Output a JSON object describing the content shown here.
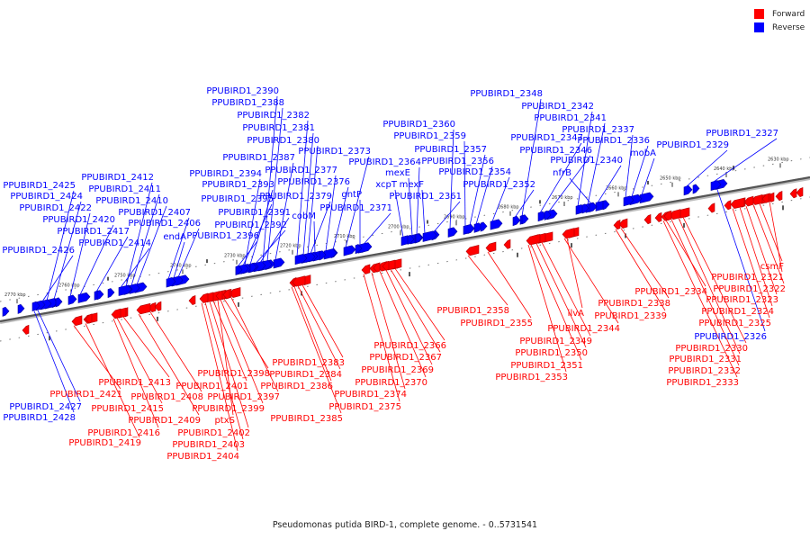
{
  "legend": {
    "forward_label": "Forward",
    "reverse_label": "Reverse",
    "forward_color": "#ff0000",
    "reverse_color": "#0000ff"
  },
  "caption": {
    "genome": "Pseudomonas putida BIRD-1, complete genome.",
    "range": " - 0..5731541"
  },
  "scale_labels": [
    "2630 kbp",
    "2640 kbp",
    "2650 kbp",
    "2660 kbp",
    "2670 kbp",
    "2680 kbp",
    "2690 kbp",
    "2700 kbp",
    "2710 kbp",
    "2720 kbp",
    "2730 kbp",
    "2740 kbp",
    "2750 kbp",
    "2760 kbp",
    "2770 kbp"
  ],
  "genes": [
    {
      "label": "PPUBIRD1_2321",
      "strand": "forward"
    },
    {
      "label": "csmF",
      "strand": "forward"
    },
    {
      "label": "PPUBIRD1_2322",
      "strand": "forward"
    },
    {
      "label": "PPUBIRD1_2323",
      "strand": "forward"
    },
    {
      "label": "PPUBIRD1_2324",
      "strand": "forward"
    },
    {
      "label": "PPUBIRD1_2325",
      "strand": "forward"
    },
    {
      "label": "PPUBIRD1_2326",
      "strand": "reverse"
    },
    {
      "label": "PPUBIRD1_2327",
      "strand": "reverse"
    },
    {
      "label": "PPUBIRD1_2329",
      "strand": "reverse"
    },
    {
      "label": "PPUBIRD1_2330",
      "strand": "forward"
    },
    {
      "label": "PPUBIRD1_2331",
      "strand": "forward"
    },
    {
      "label": "PPUBIRD1_2332",
      "strand": "forward"
    },
    {
      "label": "PPUBIRD1_2333",
      "strand": "forward"
    },
    {
      "label": "PPUBIRD1_2334",
      "strand": "forward"
    },
    {
      "label": "mobA",
      "strand": "reverse"
    },
    {
      "label": "PPUBIRD1_2336",
      "strand": "reverse"
    },
    {
      "label": "PPUBIRD1_2337",
      "strand": "reverse"
    },
    {
      "label": "PPUBIRD1_2338",
      "strand": "forward"
    },
    {
      "label": "PPUBIRD1_2339",
      "strand": "forward"
    },
    {
      "label": "PPUBIRD1_2340",
      "strand": "reverse"
    },
    {
      "label": "PPUBIRD1_2341",
      "strand": "reverse"
    },
    {
      "label": "PPUBIRD1_2342",
      "strand": "reverse"
    },
    {
      "label": "nfrB",
      "strand": "reverse"
    },
    {
      "label": "ilvA",
      "strand": "forward"
    },
    {
      "label": "PPUBIRD1_2344",
      "strand": "forward"
    },
    {
      "label": "PPUBIRD1_2346",
      "strand": "reverse"
    },
    {
      "label": "PPUBIRD1_2347",
      "strand": "reverse"
    },
    {
      "label": "PPUBIRD1_2348",
      "strand": "reverse"
    },
    {
      "label": "PPUBIRD1_2349",
      "strand": "forward"
    },
    {
      "label": "PPUBIRD1_2350",
      "strand": "forward"
    },
    {
      "label": "PPUBIRD1_2351",
      "strand": "forward"
    },
    {
      "label": "PPUBIRD1_2352",
      "strand": "reverse"
    },
    {
      "label": "PPUBIRD1_2353",
      "strand": "forward"
    },
    {
      "label": "PPUBIRD1_2354",
      "strand": "reverse"
    },
    {
      "label": "PPUBIRD1_2355",
      "strand": "forward"
    },
    {
      "label": "PPUBIRD1_2356",
      "strand": "reverse"
    },
    {
      "label": "PPUBIRD1_2357",
      "strand": "reverse"
    },
    {
      "label": "PPUBIRD1_2358",
      "strand": "forward"
    },
    {
      "label": "PPUBIRD1_2359",
      "strand": "reverse"
    },
    {
      "label": "PPUBIRD1_2360",
      "strand": "reverse"
    },
    {
      "label": "PPUBIRD1_2361",
      "strand": "reverse"
    },
    {
      "label": "mexF",
      "strand": "reverse"
    },
    {
      "label": "mexE",
      "strand": "reverse"
    },
    {
      "label": "xcpT",
      "strand": "reverse"
    },
    {
      "label": "PPUBIRD1_2364",
      "strand": "reverse"
    },
    {
      "label": "PPUBIRD1_2366",
      "strand": "forward"
    },
    {
      "label": "PPUBIRD1_2367",
      "strand": "forward"
    },
    {
      "label": "PPUBIRD1_2369",
      "strand": "forward"
    },
    {
      "label": "PPUBIRD1_2370",
      "strand": "forward"
    },
    {
      "label": "PPUBIRD1_2371",
      "strand": "reverse"
    },
    {
      "label": "gntP",
      "strand": "reverse"
    },
    {
      "label": "PPUBIRD1_2373",
      "strand": "reverse"
    },
    {
      "label": "PPUBIRD1_2374",
      "strand": "forward"
    },
    {
      "label": "PPUBIRD1_2375",
      "strand": "forward"
    },
    {
      "label": "PPUBIRD1_2376",
      "strand": "reverse"
    },
    {
      "label": "PPUBIRD1_2377",
      "strand": "reverse"
    },
    {
      "label": "cobM",
      "strand": "reverse"
    },
    {
      "label": "PPUBIRD1_2379",
      "strand": "reverse"
    },
    {
      "label": "PPUBIRD1_2380",
      "strand": "reverse"
    },
    {
      "label": "PPUBIRD1_2381",
      "strand": "reverse"
    },
    {
      "label": "PPUBIRD1_2382",
      "strand": "reverse"
    },
    {
      "label": "PPUBIRD1_2383",
      "strand": "forward"
    },
    {
      "label": "PPUBIRD1_2384",
      "strand": "forward"
    },
    {
      "label": "PPUBIRD1_2385",
      "strand": "forward"
    },
    {
      "label": "PPUBIRD1_2386",
      "strand": "forward"
    },
    {
      "label": "PPUBIRD1_2387",
      "strand": "reverse"
    },
    {
      "label": "PPUBIRD1_2388",
      "strand": "reverse"
    },
    {
      "label": "PPUBIRD1_2390",
      "strand": "reverse"
    },
    {
      "label": "PPUBIRD1_2391",
      "strand": "reverse"
    },
    {
      "label": "PPUBIRD1_2392",
      "strand": "reverse"
    },
    {
      "label": "PPUBIRD1_2393",
      "strand": "reverse"
    },
    {
      "label": "PPUBIRD1_2394",
      "strand": "reverse"
    },
    {
      "label": "PPUBIRD1_2395",
      "strand": "reverse"
    },
    {
      "label": "PPUBIRD1_2396",
      "strand": "reverse"
    },
    {
      "label": "PPUBIRD1_2397",
      "strand": "forward"
    },
    {
      "label": "PPUBIRD1_2398",
      "strand": "forward"
    },
    {
      "label": "PPUBIRD1_2399",
      "strand": "forward"
    },
    {
      "label": "PPUBIRD1_2401",
      "strand": "forward"
    },
    {
      "label": "PPUBIRD1_2402",
      "strand": "forward"
    },
    {
      "label": "PPUBIRD1_2403",
      "strand": "forward"
    },
    {
      "label": "PPUBIRD1_2404",
      "strand": "forward"
    },
    {
      "label": "ptxS",
      "strand": "forward"
    },
    {
      "label": "PPUBIRD1_2406",
      "strand": "reverse"
    },
    {
      "label": "endA",
      "strand": "reverse"
    },
    {
      "label": "PPUBIRD1_2407",
      "strand": "reverse"
    },
    {
      "label": "PPUBIRD1_2408",
      "strand": "forward"
    },
    {
      "label": "PPUBIRD1_2409",
      "strand": "forward"
    },
    {
      "label": "PPUBIRD1_2410",
      "strand": "reverse"
    },
    {
      "label": "PPUBIRD1_2411",
      "strand": "reverse"
    },
    {
      "label": "PPUBIRD1_2412",
      "strand": "reverse"
    },
    {
      "label": "PPUBIRD1_2413",
      "strand": "forward"
    },
    {
      "label": "PPUBIRD1_2414",
      "strand": "reverse"
    },
    {
      "label": "PPUBIRD1_2415",
      "strand": "forward"
    },
    {
      "label": "PPUBIRD1_2416",
      "strand": "forward"
    },
    {
      "label": "PPUBIRD1_2417",
      "strand": "reverse"
    },
    {
      "label": "PPUBIRD1_2419",
      "strand": "forward"
    },
    {
      "label": "PPUBIRD1_2420",
      "strand": "reverse"
    },
    {
      "label": "PPUBIRD1_2421",
      "strand": "forward"
    },
    {
      "label": "PPUBIRD1_2422",
      "strand": "reverse"
    },
    {
      "label": "PPUBIRD1_2424",
      "strand": "reverse"
    },
    {
      "label": "PPUBIRD1_2425",
      "strand": "reverse"
    },
    {
      "label": "PPUBIRD1_2426",
      "strand": "reverse"
    },
    {
      "label": "PPUBIRD1_2427",
      "strand": "reverse"
    },
    {
      "label": "PPUBIRD1_2428",
      "strand": "reverse"
    }
  ]
}
